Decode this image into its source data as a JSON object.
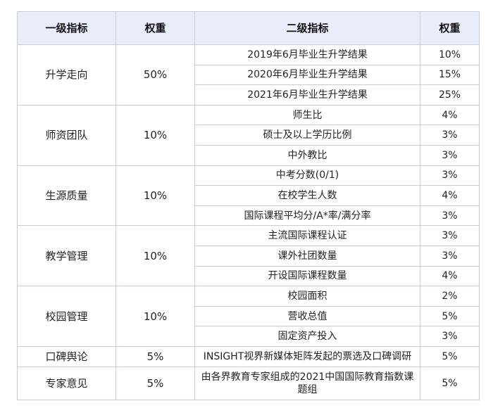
{
  "headers": [
    "一级指标",
    "权重",
    "二级指标",
    "权重"
  ],
  "groups": [
    {
      "name": "升学走向",
      "weight": "50%",
      "items": [
        {
          "name": "2019年6月毕业生升学结果",
          "weight": "10%"
        },
        {
          "name": "2020年6月毕业生升学结果",
          "weight": "15%"
        },
        {
          "name": "2021年6月毕业生升学结果",
          "weight": "25%"
        }
      ]
    },
    {
      "name": "师资团队",
      "weight": "10%",
      "items": [
        {
          "name": "师生比",
          "weight": "4%"
        },
        {
          "name": "硕士及以上学历比例",
          "weight": "3%"
        },
        {
          "name": "中外教比",
          "weight": "3%"
        }
      ]
    },
    {
      "name": "生源质量",
      "weight": "10%",
      "items": [
        {
          "name": "中考分数(0/1)",
          "weight": "3%"
        },
        {
          "name": "在校学生人数",
          "weight": "4%"
        },
        {
          "name": "国际课程平均分/A*率/满分率",
          "weight": "3%"
        }
      ]
    },
    {
      "name": "教学管理",
      "weight": "10%",
      "items": [
        {
          "name": "主流国际课程认证",
          "weight": "3%"
        },
        {
          "name": "课外社团数量",
          "weight": "3%"
        },
        {
          "name": "开设国际课程数量",
          "weight": "4%"
        }
      ]
    },
    {
      "name": "校园管理",
      "weight": "10%",
      "items": [
        {
          "name": "校园面积",
          "weight": "2%"
        },
        {
          "name": "营收总值",
          "weight": "5%"
        },
        {
          "name": "固定资产投入",
          "weight": "3%"
        }
      ]
    },
    {
      "name": "口碑舆论",
      "weight": "5%",
      "items": [
        {
          "name": "INSIGHT视界新媒体矩阵发起的票选及口碑调研",
          "weight": "5%"
        }
      ]
    },
    {
      "name": "专家意见",
      "weight": "5%",
      "items": [
        {
          "name": "由各界教育专家组成的2021中国国际教育指数课题组",
          "weight": "5%"
        }
      ]
    }
  ]
}
